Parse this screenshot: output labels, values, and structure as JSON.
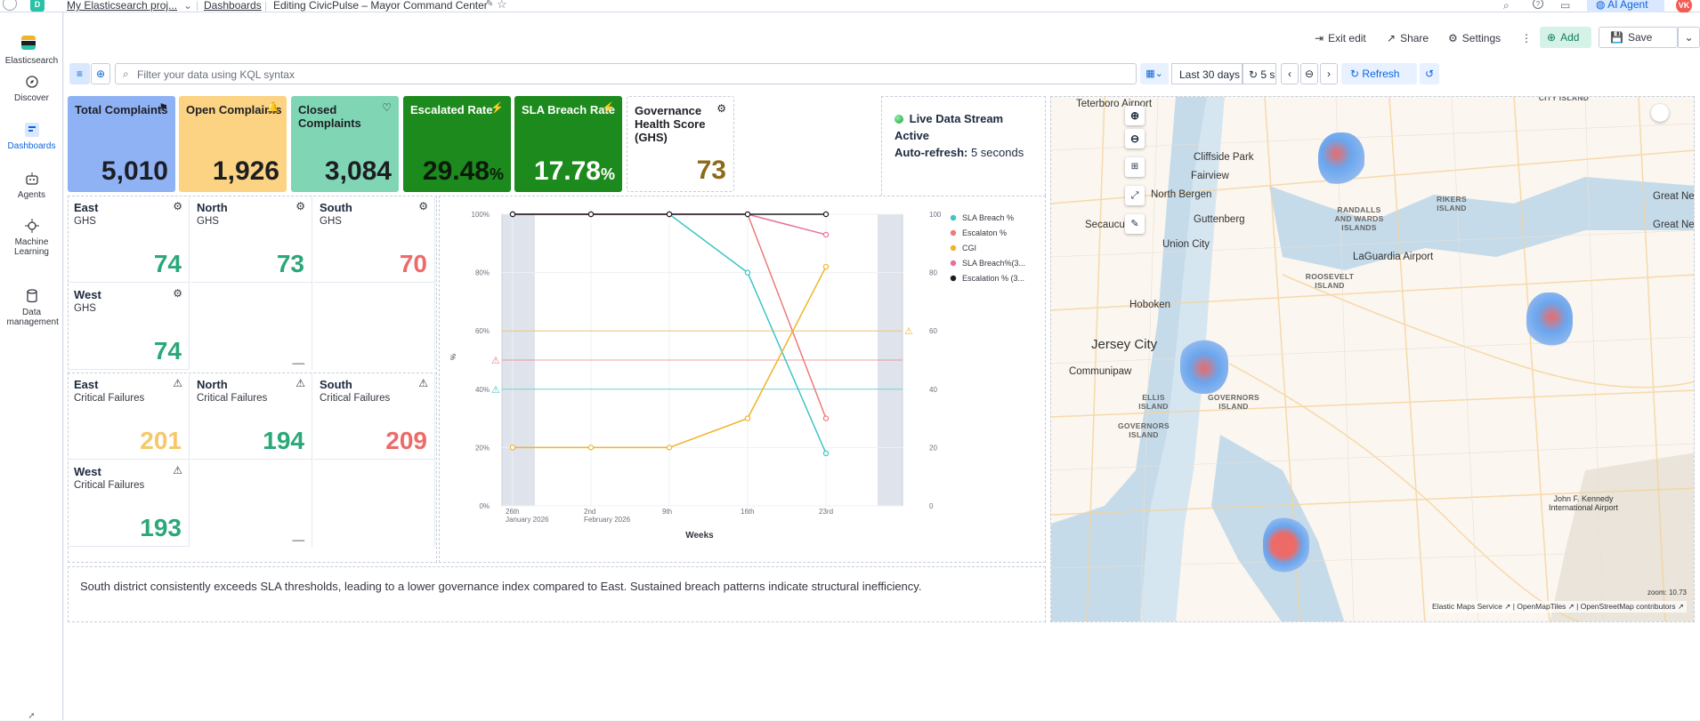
{
  "topbar": {
    "project": "My Elasticsearch proj...",
    "dashboards": "Dashboards",
    "editing": "Editing CivicPulse – Mayor Command Center",
    "ai_agent": "AI Agent",
    "avatar": "VK",
    "space": "D"
  },
  "leftnav": {
    "brand": "Elasticsearch",
    "items": [
      {
        "label": "Discover"
      },
      {
        "label": "Dashboards"
      },
      {
        "label": "Agents"
      },
      {
        "label": "Machine Learning"
      },
      {
        "label": "Data management"
      }
    ]
  },
  "toolbar": {
    "exit_edit": "Exit edit",
    "share": "Share",
    "settings": "Settings",
    "add": "Add",
    "save": "Save"
  },
  "filterbar": {
    "placeholder": "Filter your data using KQL syntax",
    "date_range": "Last 30 days",
    "interval": "5 s",
    "refresh": "Refresh"
  },
  "kpis": [
    {
      "title": "Total Complaints",
      "value": "5,010",
      "suffix": "",
      "color": "#8fb2f5",
      "text": "#1d1e24"
    },
    {
      "title": "Open Complaints",
      "value": "1,926",
      "suffix": "",
      "color": "#fbd383",
      "text": "#1d1e24"
    },
    {
      "title": "Closed Complaints",
      "value": "3,084",
      "suffix": "",
      "color": "#80d6b4",
      "text": "#1d1e24"
    },
    {
      "title": "Escalated Rate",
      "value": "29.48",
      "suffix": "%",
      "color": "#1c8a1c",
      "text": "#0b1a0b"
    },
    {
      "title": "SLA Breach Rate",
      "value": "17.78",
      "suffix": "%",
      "color": "#1c8a1c",
      "text": "#ffffff"
    },
    {
      "title": "Governance Health Score (GHS)",
      "value": "73",
      "suffix": "",
      "color": "#ffffff",
      "text": "#8c6a1a"
    }
  ],
  "live": {
    "title": "Live Data Stream",
    "status": "Active",
    "refresh_label": "Auto-refresh:",
    "refresh_value": "5 seconds"
  },
  "ghs": {
    "subtitle": "GHS",
    "cells": [
      {
        "region": "East",
        "value": "74",
        "color": "#2aa879"
      },
      {
        "region": "North",
        "value": "73",
        "color": "#2aa879"
      },
      {
        "region": "South",
        "value": "70",
        "color": "#ec6b68"
      },
      {
        "region": "West",
        "value": "74",
        "color": "#2aa879"
      }
    ]
  },
  "failures": {
    "subtitle": "Critical Failures",
    "cells": [
      {
        "region": "East",
        "value": "201",
        "color": "#f5c86a"
      },
      {
        "region": "North",
        "value": "194",
        "color": "#2aa879"
      },
      {
        "region": "South",
        "value": "209",
        "color": "#ec6b68"
      },
      {
        "region": "West",
        "value": "193",
        "color": "#2aa879"
      }
    ]
  },
  "chart_data": {
    "type": "line",
    "title": "",
    "xlabel": "Weeks",
    "ylabel": "%",
    "categories": [
      "26th January 2026",
      "2nd February 2026",
      "9th",
      "16th",
      "23rd"
    ],
    "tick_labels": [
      [
        "26th",
        "January 2026"
      ],
      [
        "2nd",
        "February 2026"
      ],
      [
        "9th"
      ],
      [
        "16th"
      ],
      [
        "23rd"
      ]
    ],
    "left_axis": {
      "ticks": [
        "0%",
        "20%",
        "40%",
        "60%",
        "80%",
        "100%"
      ],
      "ylim": [
        0,
        100
      ]
    },
    "right_axis": {
      "ticks": [
        "0",
        "20",
        "40",
        "60",
        "80",
        "100"
      ],
      "ylim": [
        0,
        100
      ]
    },
    "series": [
      {
        "name": "SLA Breach %",
        "color": "#3cc5c5",
        "values": [
          100,
          100,
          100,
          80,
          18
        ]
      },
      {
        "name": "Escalaton %",
        "color": "#ec7a7a",
        "values": [
          100,
          100,
          100,
          100,
          30
        ]
      },
      {
        "name": "CGI",
        "color": "#f0b429",
        "values": [
          20,
          20,
          20,
          30,
          82
        ]
      },
      {
        "name": "SLA Breach%(3...",
        "color": "#e8709a",
        "values": [
          100,
          100,
          100,
          100,
          93
        ]
      },
      {
        "name": "Escalation % (3...",
        "color": "#1d1e24",
        "values": [
          100,
          100,
          100,
          100,
          100
        ]
      }
    ],
    "reference_lines": [
      {
        "value": 60,
        "color": "#f0b429",
        "axis": "right"
      },
      {
        "value": 50,
        "color": "#ec7a7a",
        "axis": "left"
      },
      {
        "value": 40,
        "color": "#3cc5c5",
        "axis": "left"
      }
    ],
    "legend_position": "right"
  },
  "insight": "South district consistently exceeds SLA thresholds, leading to a lower governance index compared to East. Sustained breach patterns indicate structural inefficiency.",
  "map": {
    "labels": [
      "Teterboro Airport",
      "Cliffside Park",
      "Fairview",
      "North Bergen",
      "Guttenberg",
      "Secaucus",
      "Union City",
      "Hoboken",
      "Jersey City",
      "Communipaw",
      "LaGuardia Airport",
      "Great Neck",
      "Great Neck",
      "John F. Kennedy International Airport"
    ],
    "small_labels": [
      "RANDALLS AND WARDS ISLANDS",
      "RIKERS ISLAND",
      "ROOSEVELT ISLAND",
      "ELLIS ISLAND",
      "GOVERNORS ISLAND",
      "GOVERNORS ISLAND",
      "CITY ISLAND"
    ],
    "zoom": "zoom: 10.73",
    "attribution": [
      "Elastic Maps Service",
      "OpenMapTiles",
      "OpenStreetMap contributors"
    ]
  }
}
